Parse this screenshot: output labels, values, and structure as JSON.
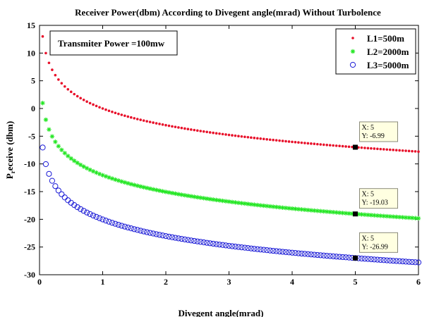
{
  "chart_data": {
    "type": "scatter",
    "title": "Receiver Power(dbm) According to Divegent angle(mrad) Without Turbolence",
    "xlabel": "Divegent angle(mrad)",
    "ylabel_main": "P",
    "ylabel_sub": "r",
    "ylabel_rest": "eceive (dbm)",
    "xlim": [
      0,
      6
    ],
    "ylim": [
      -30,
      15
    ],
    "xticks": [
      "0",
      "1",
      "2",
      "3",
      "4",
      "5",
      "6"
    ],
    "yticks": [
      "15",
      "10",
      "5",
      "0",
      "-5",
      "-10",
      "-15",
      "-20",
      "-25",
      "-30"
    ],
    "grid": false,
    "legend_position": "top-right",
    "annotation_box": "Transmiter Power =100mw",
    "series": [
      {
        "name": "L1=500m",
        "marker": "dot",
        "color": "#e8102a",
        "x_start": 0.05,
        "x_end": 6.0,
        "x_step": 0.05,
        "y_at_x5": -6.99,
        "y_start": 13.0
      },
      {
        "name": "L2=2000m",
        "marker": "asterisk",
        "color": "#22e622",
        "x_start": 0.05,
        "x_end": 6.0,
        "x_step": 0.05,
        "y_at_x5": -19.03,
        "y_start": 0.98
      },
      {
        "name": "L3=5000m",
        "marker": "circle",
        "color": "#1a1ad6",
        "x_start": 0.05,
        "x_end": 6.0,
        "x_step": 0.05,
        "y_at_x5": -26.99,
        "y_start": -7.04
      }
    ],
    "datatips": [
      {
        "series": 0,
        "x": 5,
        "y": -6.99,
        "line1": "X: 5",
        "line2": "Y: -6.99"
      },
      {
        "series": 1,
        "x": 5,
        "y": -19.03,
        "line1": "X: 5",
        "line2": "Y: -19.03"
      },
      {
        "series": 2,
        "x": 5,
        "y": -26.99,
        "line1": "X: 5",
        "line2": "Y: -26.99"
      }
    ]
  }
}
